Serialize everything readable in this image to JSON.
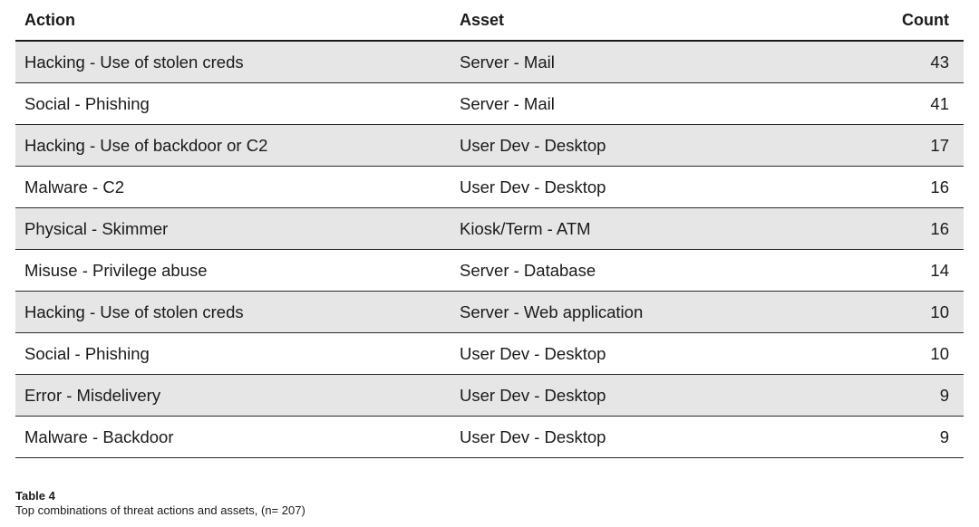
{
  "table": {
    "headers": {
      "action": "Action",
      "asset": "Asset",
      "count": "Count"
    },
    "rows": [
      {
        "action": "Hacking - Use of stolen creds",
        "asset": "Server - Mail",
        "count": "43"
      },
      {
        "action": "Social - Phishing",
        "asset": "Server - Mail",
        "count": "41"
      },
      {
        "action": "Hacking - Use of backdoor or C2",
        "asset": "User Dev - Desktop",
        "count": "17"
      },
      {
        "action": "Malware - C2",
        "asset": "User Dev - Desktop",
        "count": "16"
      },
      {
        "action": "Physical - Skimmer",
        "asset": "Kiosk/Term - ATM",
        "count": "16"
      },
      {
        "action": "Misuse - Privilege abuse",
        "asset": "Server - Database",
        "count": "14"
      },
      {
        "action": "Hacking - Use of stolen creds",
        "asset": "Server - Web application",
        "count": "10"
      },
      {
        "action": "Social - Phishing",
        "asset": "User Dev - Desktop",
        "count": "10"
      },
      {
        "action": "Error - Misdelivery",
        "asset": "User Dev - Desktop",
        "count": "9"
      },
      {
        "action": "Malware - Backdoor",
        "asset": "User Dev - Desktop",
        "count": "9"
      }
    ]
  },
  "caption": {
    "title": "Table 4",
    "text": "Top combinations of threat actions and assets, (n= 207)"
  },
  "colors": {
    "stripe": "#e6e6e6",
    "rule": "#1a1a1a"
  }
}
